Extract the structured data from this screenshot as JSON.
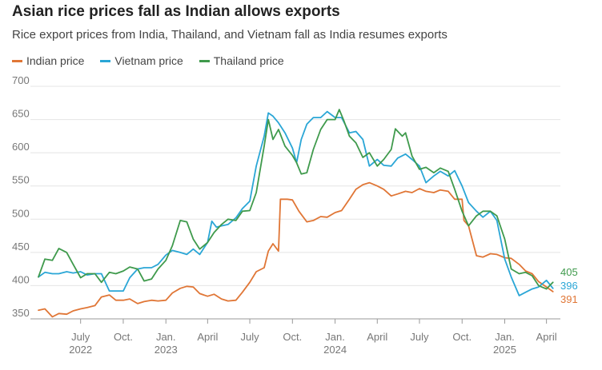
{
  "header": {
    "title": "Asian rice prices fall as Indian allows exports",
    "subtitle": "Rice export prices from India, Thailand, and Vietnam fall as India resumes exports"
  },
  "colors": {
    "india": "#e07636",
    "vietnam": "#2aa6d6",
    "thailand": "#3f9a4c",
    "grid": "#e4e4e4",
    "axis": "#999999"
  },
  "chart_data": {
    "type": "line",
    "title": "Asian rice prices fall as Indian allows exports",
    "subtitle": "Rice export prices from India, Thailand, and Vietnam fall as India resumes exports",
    "xlabel": "",
    "ylabel": "",
    "ylim": [
      350,
      700
    ],
    "y_ticks": [
      350,
      400,
      450,
      500,
      550,
      600,
      650,
      700
    ],
    "xlim": [
      "2022-04-01",
      "2025-05-01"
    ],
    "x_ticks": [
      {
        "date": "2022-07-01",
        "line1": "July",
        "line2": "2022"
      },
      {
        "date": "2022-10-01",
        "line1": "Oct.",
        "line2": ""
      },
      {
        "date": "2023-01-01",
        "line1": "Jan.",
        "line2": "2023"
      },
      {
        "date": "2023-04-01",
        "line1": "April",
        "line2": ""
      },
      {
        "date": "2023-07-01",
        "line1": "July",
        "line2": ""
      },
      {
        "date": "2023-10-01",
        "line1": "Oct.",
        "line2": ""
      },
      {
        "date": "2024-01-01",
        "line1": "Jan.",
        "line2": "2024"
      },
      {
        "date": "2024-04-01",
        "line1": "April",
        "line2": ""
      },
      {
        "date": "2024-07-01",
        "line1": "July",
        "line2": ""
      },
      {
        "date": "2024-10-01",
        "line1": "Oct.",
        "line2": ""
      },
      {
        "date": "2025-01-01",
        "line1": "Jan.",
        "line2": "2025"
      },
      {
        "date": "2025-04-01",
        "line1": "April",
        "line2": ""
      }
    ],
    "grid": true,
    "legend_position": "top-left",
    "series": [
      {
        "name": "Indian price",
        "color": "#e07636",
        "end_label": "391",
        "points": [
          [
            "2022-04-01",
            363
          ],
          [
            "2022-04-15",
            365
          ],
          [
            "2022-05-01",
            353
          ],
          [
            "2022-05-15",
            358
          ],
          [
            "2022-06-01",
            357
          ],
          [
            "2022-06-15",
            362
          ],
          [
            "2022-07-01",
            365
          ],
          [
            "2022-07-15",
            367
          ],
          [
            "2022-08-01",
            370
          ],
          [
            "2022-08-15",
            383
          ],
          [
            "2022-09-01",
            386
          ],
          [
            "2022-09-15",
            378
          ],
          [
            "2022-10-01",
            378
          ],
          [
            "2022-10-15",
            380
          ],
          [
            "2022-11-01",
            373
          ],
          [
            "2022-11-15",
            376
          ],
          [
            "2022-12-01",
            378
          ],
          [
            "2022-12-15",
            377
          ],
          [
            "2023-01-01",
            378
          ],
          [
            "2023-01-15",
            389
          ],
          [
            "2023-02-01",
            396
          ],
          [
            "2023-02-15",
            399
          ],
          [
            "2023-03-01",
            398
          ],
          [
            "2023-03-15",
            388
          ],
          [
            "2023-04-01",
            384
          ],
          [
            "2023-04-15",
            387
          ],
          [
            "2023-05-01",
            380
          ],
          [
            "2023-05-15",
            377
          ],
          [
            "2023-06-01",
            378
          ],
          [
            "2023-06-15",
            390
          ],
          [
            "2023-07-01",
            405
          ],
          [
            "2023-07-15",
            421
          ],
          [
            "2023-08-01",
            427
          ],
          [
            "2023-08-10",
            452
          ],
          [
            "2023-08-20",
            463
          ],
          [
            "2023-09-01",
            452
          ],
          [
            "2023-09-05",
            530
          ],
          [
            "2023-09-20",
            530
          ],
          [
            "2023-10-01",
            529
          ],
          [
            "2023-10-15",
            512
          ],
          [
            "2023-11-01",
            496
          ],
          [
            "2023-11-15",
            498
          ],
          [
            "2023-12-01",
            504
          ],
          [
            "2023-12-15",
            503
          ],
          [
            "2024-01-01",
            510
          ],
          [
            "2024-01-15",
            513
          ],
          [
            "2024-02-01",
            530
          ],
          [
            "2024-02-15",
            545
          ],
          [
            "2024-03-01",
            552
          ],
          [
            "2024-03-15",
            555
          ],
          [
            "2024-04-01",
            550
          ],
          [
            "2024-04-15",
            545
          ],
          [
            "2024-05-01",
            535
          ],
          [
            "2024-05-15",
            538
          ],
          [
            "2024-06-01",
            542
          ],
          [
            "2024-06-15",
            540
          ],
          [
            "2024-07-01",
            546
          ],
          [
            "2024-07-15",
            542
          ],
          [
            "2024-08-01",
            540
          ],
          [
            "2024-08-15",
            544
          ],
          [
            "2024-09-01",
            542
          ],
          [
            "2024-09-15",
            530
          ],
          [
            "2024-10-01",
            530
          ],
          [
            "2024-10-05",
            498
          ],
          [
            "2024-10-15",
            490
          ],
          [
            "2024-11-01",
            445
          ],
          [
            "2024-11-15",
            443
          ],
          [
            "2024-12-01",
            448
          ],
          [
            "2024-12-15",
            447
          ],
          [
            "2025-01-01",
            442
          ],
          [
            "2025-01-15",
            441
          ],
          [
            "2025-02-01",
            432
          ],
          [
            "2025-02-15",
            422
          ],
          [
            "2025-03-01",
            418
          ],
          [
            "2025-03-15",
            406
          ],
          [
            "2025-04-01",
            398
          ],
          [
            "2025-04-15",
            391
          ]
        ]
      },
      {
        "name": "Vietnam price",
        "color": "#2aa6d6",
        "end_label": "396",
        "points": [
          [
            "2022-04-01",
            413
          ],
          [
            "2022-04-15",
            420
          ],
          [
            "2022-05-01",
            418
          ],
          [
            "2022-05-15",
            418
          ],
          [
            "2022-06-01",
            421
          ],
          [
            "2022-06-15",
            419
          ],
          [
            "2022-07-01",
            421
          ],
          [
            "2022-07-15",
            416
          ],
          [
            "2022-08-01",
            418
          ],
          [
            "2022-08-15",
            418
          ],
          [
            "2022-09-01",
            392
          ],
          [
            "2022-09-15",
            392
          ],
          [
            "2022-10-01",
            392
          ],
          [
            "2022-10-15",
            412
          ],
          [
            "2022-11-01",
            425
          ],
          [
            "2022-11-15",
            427
          ],
          [
            "2022-12-01",
            427
          ],
          [
            "2022-12-15",
            432
          ],
          [
            "2023-01-01",
            446
          ],
          [
            "2023-01-15",
            453
          ],
          [
            "2023-02-01",
            450
          ],
          [
            "2023-02-15",
            447
          ],
          [
            "2023-03-01",
            455
          ],
          [
            "2023-03-15",
            447
          ],
          [
            "2023-04-01",
            465
          ],
          [
            "2023-04-10",
            497
          ],
          [
            "2023-04-20",
            488
          ],
          [
            "2023-05-01",
            490
          ],
          [
            "2023-05-15",
            492
          ],
          [
            "2023-06-01",
            502
          ],
          [
            "2023-06-15",
            516
          ],
          [
            "2023-07-01",
            527
          ],
          [
            "2023-07-15",
            580
          ],
          [
            "2023-08-01",
            625
          ],
          [
            "2023-08-10",
            660
          ],
          [
            "2023-08-20",
            655
          ],
          [
            "2023-09-01",
            645
          ],
          [
            "2023-09-15",
            630
          ],
          [
            "2023-10-01",
            607
          ],
          [
            "2023-10-10",
            585
          ],
          [
            "2023-10-20",
            620
          ],
          [
            "2023-11-01",
            643
          ],
          [
            "2023-11-15",
            653
          ],
          [
            "2023-12-01",
            653
          ],
          [
            "2023-12-15",
            662
          ],
          [
            "2024-01-01",
            653
          ],
          [
            "2024-01-15",
            653
          ],
          [
            "2024-02-01",
            630
          ],
          [
            "2024-02-15",
            632
          ],
          [
            "2024-03-01",
            620
          ],
          [
            "2024-03-15",
            580
          ],
          [
            "2024-04-01",
            590
          ],
          [
            "2024-04-15",
            581
          ],
          [
            "2024-05-01",
            580
          ],
          [
            "2024-05-15",
            592
          ],
          [
            "2024-06-01",
            598
          ],
          [
            "2024-06-15",
            590
          ],
          [
            "2024-07-01",
            580
          ],
          [
            "2024-07-15",
            555
          ],
          [
            "2024-08-01",
            565
          ],
          [
            "2024-08-15",
            572
          ],
          [
            "2024-09-01",
            565
          ],
          [
            "2024-09-15",
            573
          ],
          [
            "2024-10-01",
            550
          ],
          [
            "2024-10-15",
            525
          ],
          [
            "2024-11-01",
            512
          ],
          [
            "2024-11-15",
            503
          ],
          [
            "2024-12-01",
            512
          ],
          [
            "2024-12-15",
            498
          ],
          [
            "2025-01-01",
            440
          ],
          [
            "2025-01-15",
            413
          ],
          [
            "2025-02-01",
            385
          ],
          [
            "2025-02-15",
            390
          ],
          [
            "2025-03-01",
            395
          ],
          [
            "2025-03-15",
            398
          ],
          [
            "2025-04-01",
            408
          ],
          [
            "2025-04-15",
            396
          ]
        ]
      },
      {
        "name": "Thailand price",
        "color": "#3f9a4c",
        "end_label": "405",
        "points": [
          [
            "2022-04-01",
            413
          ],
          [
            "2022-04-15",
            440
          ],
          [
            "2022-05-01",
            438
          ],
          [
            "2022-05-15",
            456
          ],
          [
            "2022-06-01",
            450
          ],
          [
            "2022-06-15",
            432
          ],
          [
            "2022-07-01",
            412
          ],
          [
            "2022-07-15",
            418
          ],
          [
            "2022-08-01",
            418
          ],
          [
            "2022-08-15",
            405
          ],
          [
            "2022-09-01",
            420
          ],
          [
            "2022-09-15",
            418
          ],
          [
            "2022-10-01",
            422
          ],
          [
            "2022-10-15",
            428
          ],
          [
            "2022-11-01",
            425
          ],
          [
            "2022-11-15",
            407
          ],
          [
            "2022-12-01",
            410
          ],
          [
            "2022-12-15",
            425
          ],
          [
            "2023-01-01",
            438
          ],
          [
            "2023-01-15",
            460
          ],
          [
            "2023-02-01",
            498
          ],
          [
            "2023-02-15",
            496
          ],
          [
            "2023-03-01",
            470
          ],
          [
            "2023-03-15",
            455
          ],
          [
            "2023-04-01",
            465
          ],
          [
            "2023-04-15",
            480
          ],
          [
            "2023-05-01",
            492
          ],
          [
            "2023-05-15",
            500
          ],
          [
            "2023-06-01",
            498
          ],
          [
            "2023-06-15",
            512
          ],
          [
            "2023-07-01",
            513
          ],
          [
            "2023-07-15",
            540
          ],
          [
            "2023-08-01",
            610
          ],
          [
            "2023-08-10",
            650
          ],
          [
            "2023-08-20",
            620
          ],
          [
            "2023-09-01",
            635
          ],
          [
            "2023-09-15",
            610
          ],
          [
            "2023-10-01",
            596
          ],
          [
            "2023-10-10",
            585
          ],
          [
            "2023-10-20",
            568
          ],
          [
            "2023-11-01",
            570
          ],
          [
            "2023-11-15",
            605
          ],
          [
            "2023-12-01",
            635
          ],
          [
            "2023-12-15",
            650
          ],
          [
            "2024-01-01",
            650
          ],
          [
            "2024-01-10",
            665
          ],
          [
            "2024-01-20",
            648
          ],
          [
            "2024-02-01",
            625
          ],
          [
            "2024-02-15",
            615
          ],
          [
            "2024-03-01",
            593
          ],
          [
            "2024-03-15",
            600
          ],
          [
            "2024-04-01",
            580
          ],
          [
            "2024-04-15",
            590
          ],
          [
            "2024-05-01",
            605
          ],
          [
            "2024-05-10",
            636
          ],
          [
            "2024-05-25",
            625
          ],
          [
            "2024-06-01",
            630
          ],
          [
            "2024-06-15",
            595
          ],
          [
            "2024-07-01",
            575
          ],
          [
            "2024-07-15",
            578
          ],
          [
            "2024-08-01",
            570
          ],
          [
            "2024-08-15",
            577
          ],
          [
            "2024-09-01",
            572
          ],
          [
            "2024-09-15",
            545
          ],
          [
            "2024-10-01",
            512
          ],
          [
            "2024-10-15",
            490
          ],
          [
            "2024-11-01",
            505
          ],
          [
            "2024-11-15",
            512
          ],
          [
            "2024-12-01",
            512
          ],
          [
            "2024-12-15",
            505
          ],
          [
            "2025-01-01",
            470
          ],
          [
            "2025-01-15",
            425
          ],
          [
            "2025-02-01",
            418
          ],
          [
            "2025-02-15",
            420
          ],
          [
            "2025-03-01",
            415
          ],
          [
            "2025-03-15",
            400
          ],
          [
            "2025-04-01",
            395
          ],
          [
            "2025-04-15",
            405
          ]
        ]
      }
    ]
  }
}
